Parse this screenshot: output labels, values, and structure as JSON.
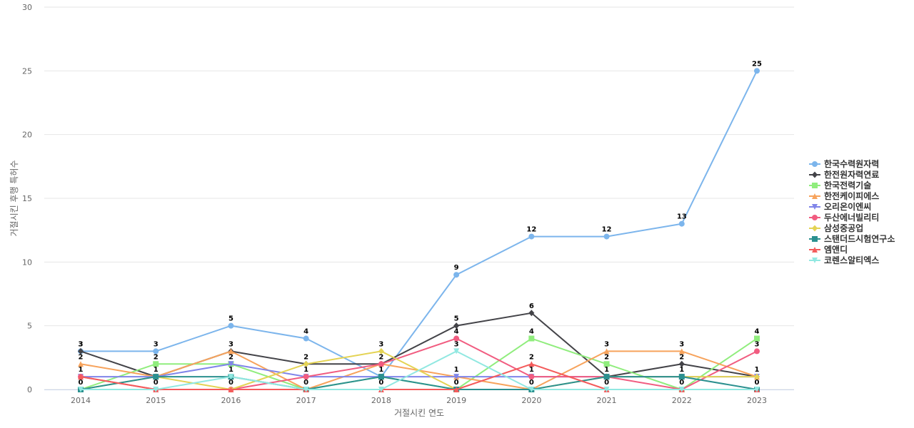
{
  "chart_data": {
    "type": "line",
    "title": "",
    "xlabel": "거절시킨 연도",
    "ylabel": "거절시킨 후행 특허수",
    "categories": [
      "2014",
      "2015",
      "2016",
      "2017",
      "2018",
      "2019",
      "2020",
      "2021",
      "2022",
      "2023"
    ],
    "ylim": [
      0,
      30
    ],
    "yticks": [
      0,
      5,
      10,
      15,
      20,
      25,
      30
    ],
    "grid": true,
    "legend_position": "right",
    "series": [
      {
        "name": "한국수력원자력",
        "color": "#7cb5ec",
        "marker": "circle",
        "values": [
          3,
          3,
          5,
          4,
          1,
          9,
          12,
          12,
          13,
          25
        ]
      },
      {
        "name": "한전원자력연료",
        "color": "#434348",
        "marker": "diamond",
        "values": [
          3,
          1,
          3,
          2,
          2,
          5,
          6,
          1,
          2,
          1
        ]
      },
      {
        "name": "한국전력기술",
        "color": "#90ed7d",
        "marker": "square",
        "values": [
          0,
          2,
          2,
          0,
          1,
          0,
          4,
          2,
          0,
          4
        ]
      },
      {
        "name": "한전케이피에스",
        "color": "#f7a35c",
        "marker": "triangle",
        "values": [
          2,
          1,
          3,
          0,
          2,
          1,
          0,
          3,
          3,
          1
        ]
      },
      {
        "name": "오리온이엔씨",
        "color": "#8085e9",
        "marker": "triangle-down",
        "values": [
          1,
          1,
          2,
          1,
          1,
          1,
          1,
          1,
          1,
          1
        ]
      },
      {
        "name": "두산에너빌리티",
        "color": "#f15c80",
        "marker": "circle",
        "values": [
          1,
          0,
          0,
          1,
          2,
          4,
          1,
          1,
          0,
          3
        ]
      },
      {
        "name": "삼성중공업",
        "color": "#e4d354",
        "marker": "diamond",
        "values": [
          0,
          1,
          0,
          2,
          3,
          0,
          0,
          1,
          1,
          1
        ]
      },
      {
        "name": "스탠더드시험연구소",
        "color": "#2b908f",
        "marker": "square",
        "values": [
          0,
          1,
          1,
          0,
          1,
          0,
          0,
          1,
          1,
          0
        ]
      },
      {
        "name": "엠앤디",
        "color": "#f45b5b",
        "marker": "triangle",
        "values": [
          1,
          0,
          0,
          0,
          0,
          0,
          2,
          0,
          0,
          0
        ]
      },
      {
        "name": "코렌스알티엑스",
        "color": "#91e8e1",
        "marker": "triangle-down",
        "values": [
          0,
          0,
          1,
          0,
          0,
          3,
          0,
          0,
          0,
          0
        ]
      }
    ],
    "data_labels": [
      {
        "category": "2014",
        "text": [
          "3",
          "3",
          "2",
          "1",
          "0"
        ]
      },
      {
        "category": "2015",
        "text": [
          "3",
          "2",
          "1",
          "0"
        ]
      },
      {
        "category": "2016",
        "text": [
          "5",
          "3",
          "2",
          "1",
          "0"
        ]
      },
      {
        "category": "2017",
        "text": [
          "4",
          "2",
          "1",
          "0"
        ]
      },
      {
        "category": "2018",
        "text": [
          "3",
          "2",
          "1",
          "0"
        ]
      },
      {
        "category": "2019",
        "text": [
          "9",
          "5",
          "4",
          "3",
          "1",
          "0"
        ]
      },
      {
        "category": "2020",
        "text": [
          "12",
          "6",
          "4",
          "2",
          "1",
          "0"
        ]
      },
      {
        "category": "2021",
        "text": [
          "12",
          "3",
          "2",
          "1",
          "0"
        ]
      },
      {
        "category": "2022",
        "text": [
          "13",
          "3",
          "2",
          "1",
          "0"
        ]
      },
      {
        "category": "2023",
        "text": [
          "25",
          "4",
          "3",
          "1",
          "0"
        ]
      }
    ]
  }
}
